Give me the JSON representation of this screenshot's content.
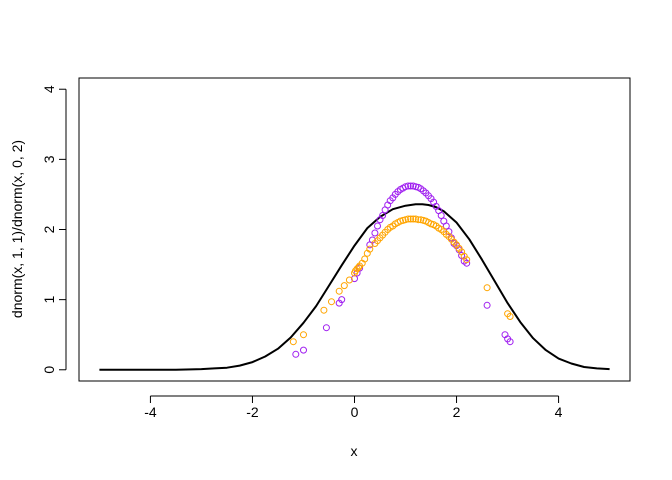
{
  "chart_data": {
    "type": "scatter",
    "title": "",
    "xlabel": "x",
    "ylabel": "dnorm(x, 1, 1)/dnorm(x, 0, 2)",
    "xlim": [
      -5.4,
      5.4
    ],
    "ylim": [
      -0.16,
      4.16
    ],
    "xticks": [
      -4,
      -2,
      0,
      2,
      4
    ],
    "yticks": [
      0,
      1,
      2,
      3,
      4
    ],
    "grid": false,
    "legend": "none",
    "curve": {
      "color": "#000000",
      "x": [
        -5,
        -4.5,
        -4,
        -3.5,
        -3,
        -2.75,
        -2.5,
        -2.25,
        -2,
        -1.75,
        -1.5,
        -1.25,
        -1,
        -0.75,
        -0.5,
        -0.25,
        0,
        0.25,
        0.5,
        0.75,
        1,
        1.1,
        1.2,
        1.33,
        1.45,
        1.6,
        1.75,
        2,
        2.25,
        2.5,
        2.75,
        3,
        3.25,
        3.5,
        3.75,
        4,
        4.25,
        4.5,
        4.75,
        5
      ],
      "y": [
        0.0,
        0.0,
        0.0,
        0.0,
        0.01,
        0.02,
        0.03,
        0.06,
        0.11,
        0.19,
        0.3,
        0.46,
        0.67,
        0.91,
        1.2,
        1.49,
        1.77,
        2.02,
        2.18,
        2.29,
        2.34,
        2.35,
        2.36,
        2.36,
        2.35,
        2.32,
        2.26,
        2.1,
        1.86,
        1.57,
        1.26,
        0.95,
        0.68,
        0.45,
        0.28,
        0.16,
        0.09,
        0.04,
        0.02,
        0.01
      ]
    },
    "series": [
      {
        "color": "#a020f0",
        "x": [
          -1.15,
          -1.0,
          -0.55,
          -0.3,
          -0.25,
          0.0,
          0.05,
          0.1,
          0.3,
          0.35,
          0.4,
          0.45,
          0.5,
          0.55,
          0.6,
          0.65,
          0.7,
          0.75,
          0.8,
          0.85,
          0.9,
          0.95,
          1.0,
          1.05,
          1.1,
          1.15,
          1.2,
          1.25,
          1.3,
          1.35,
          1.4,
          1.45,
          1.5,
          1.55,
          1.6,
          1.65,
          1.7,
          1.75,
          1.8,
          1.85,
          1.9,
          1.95,
          2.0,
          2.05,
          2.1,
          2.15,
          2.2,
          2.6,
          2.95,
          3.0,
          3.05
        ],
        "y": [
          0.22,
          0.28,
          0.6,
          0.95,
          1.0,
          1.3,
          1.38,
          1.45,
          1.78,
          1.85,
          1.95,
          2.05,
          2.14,
          2.2,
          2.28,
          2.35,
          2.41,
          2.45,
          2.5,
          2.54,
          2.57,
          2.59,
          2.61,
          2.62,
          2.62,
          2.62,
          2.61,
          2.6,
          2.58,
          2.55,
          2.52,
          2.48,
          2.44,
          2.39,
          2.33,
          2.27,
          2.2,
          2.12,
          2.05,
          1.97,
          1.88,
          1.8,
          1.77,
          1.71,
          1.63,
          1.55,
          1.52,
          0.92,
          0.5,
          0.44,
          0.4
        ]
      },
      {
        "color": "#ffa500",
        "x": [
          -1.2,
          -1.0,
          -0.6,
          -0.45,
          -0.3,
          -0.2,
          -0.1,
          0.0,
          0.02,
          0.05,
          0.08,
          0.1,
          0.15,
          0.2,
          0.25,
          0.3,
          0.4,
          0.45,
          0.5,
          0.55,
          0.6,
          0.65,
          0.7,
          0.75,
          0.8,
          0.85,
          0.9,
          0.95,
          1.0,
          1.05,
          1.1,
          1.15,
          1.2,
          1.25,
          1.3,
          1.35,
          1.4,
          1.45,
          1.5,
          1.55,
          1.6,
          1.65,
          1.7,
          1.75,
          1.8,
          1.85,
          1.9,
          1.95,
          2.0,
          2.05,
          2.1,
          2.15,
          2.2,
          2.6,
          3.0,
          3.05
        ],
        "y": [
          0.4,
          0.5,
          0.85,
          0.97,
          1.12,
          1.2,
          1.28,
          1.38,
          1.41,
          1.44,
          1.46,
          1.48,
          1.52,
          1.58,
          1.66,
          1.72,
          1.8,
          1.84,
          1.88,
          1.92,
          1.96,
          2.0,
          2.03,
          2.05,
          2.08,
          2.1,
          2.12,
          2.13,
          2.14,
          2.15,
          2.15,
          2.15,
          2.15,
          2.14,
          2.14,
          2.13,
          2.12,
          2.1,
          2.08,
          2.07,
          2.05,
          2.02,
          2.0,
          1.97,
          1.93,
          1.9,
          1.86,
          1.82,
          1.78,
          1.73,
          1.68,
          1.62,
          1.57,
          1.17,
          0.8,
          0.76
        ]
      }
    ]
  }
}
